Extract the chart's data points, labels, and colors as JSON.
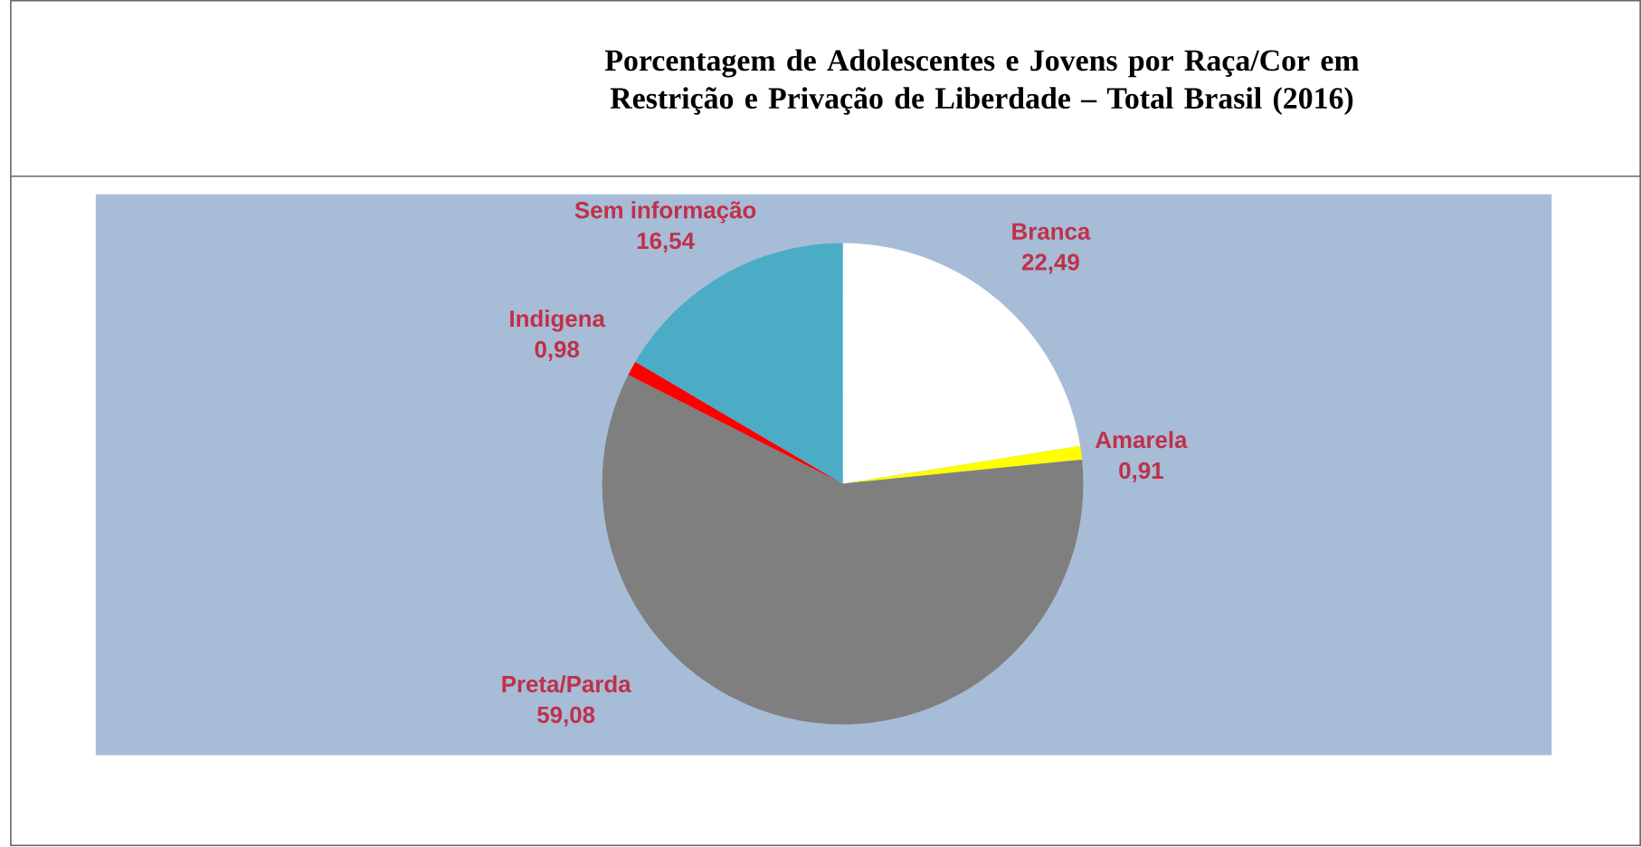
{
  "chart_data": {
    "type": "pie",
    "title": "Porcentagem de Adolescentes e Jovens por Raça/Cor em Restrição e Privação de Liberdade – Total Brasil (2016)",
    "categories": [
      "Branca",
      "Amarela",
      "Preta/Parda",
      "Indigena",
      "Sem informação"
    ],
    "values": [
      22.49,
      0.91,
      59.08,
      0.98,
      16.54
    ],
    "value_labels": [
      "22,49",
      "0,91",
      "59,08",
      "0,98",
      "16,54"
    ],
    "colors": [
      "#ffffff",
      "#ffff00",
      "#7f7f7f",
      "#ff0000",
      "#4bacc6"
    ]
  }
}
